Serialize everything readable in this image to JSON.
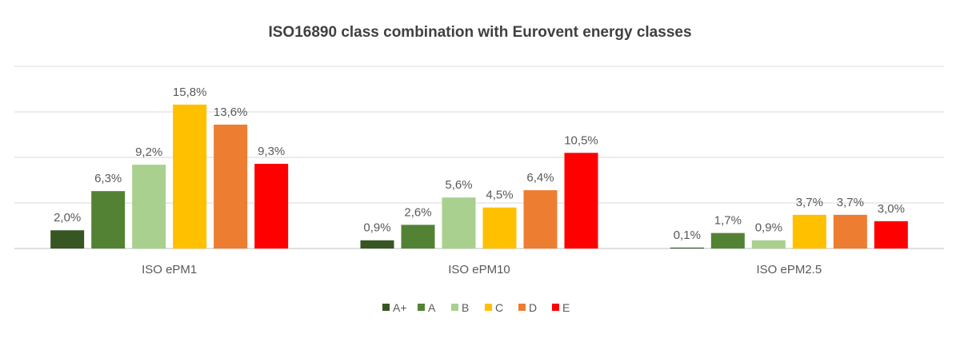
{
  "chart_data": {
    "type": "bar",
    "title": "ISO16890 class combination with Eurovent energy classes",
    "categories": [
      "ISO ePM1",
      "ISO ePM10",
      "ISO ePM2.5"
    ],
    "series": [
      {
        "name": "A+",
        "color": "#375623",
        "values": [
          2.0,
          0.9,
          0.1
        ],
        "labels": [
          "2,0%",
          "0,9%",
          "0,1%"
        ]
      },
      {
        "name": "A",
        "color": "#548235",
        "values": [
          6.3,
          2.6,
          1.7
        ],
        "labels": [
          "6,3%",
          "2,6%",
          "1,7%"
        ]
      },
      {
        "name": "B",
        "color": "#A9D08E",
        "values": [
          9.2,
          5.6,
          0.9
        ],
        "labels": [
          "9,2%",
          "5,6%",
          "0,9%"
        ]
      },
      {
        "name": "C",
        "color": "#FFC000",
        "values": [
          15.8,
          4.5,
          3.7
        ],
        "labels": [
          "15,8%",
          "4,5%",
          "3,7%"
        ]
      },
      {
        "name": "D",
        "color": "#ED7D31",
        "values": [
          13.6,
          6.4,
          3.7
        ],
        "labels": [
          "13,6%",
          "6,4%",
          "3,7%"
        ]
      },
      {
        "name": "E",
        "color": "#FF0000",
        "values": [
          9.3,
          10.5,
          3.0
        ],
        "labels": [
          "9,3%",
          "10,5%",
          "3,0%"
        ]
      }
    ],
    "ylim": [
      0,
      20
    ],
    "grid": true,
    "y_axis_labels_shown": false,
    "legend_position": "bottom"
  }
}
